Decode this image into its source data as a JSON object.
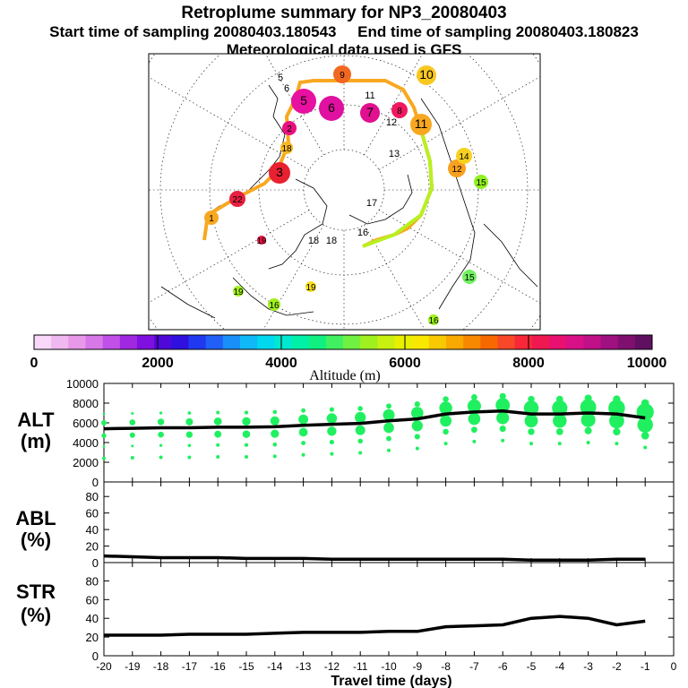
{
  "header": {
    "title": "Retroplume summary for NP3_20080403",
    "start_label": "Start time of sampling 20080403.180543",
    "end_label": "End time of sampling 20080403.180823",
    "met_label": "Meteorological data used is GFS"
  },
  "colorbar": {
    "title": "Altitude (m)",
    "ticks": [
      "0",
      "2000",
      "4000",
      "6000",
      "8000",
      "10000"
    ],
    "colors": [
      "#f8d8f8",
      "#f0b8f0",
      "#e898e8",
      "#d878e8",
      "#c050e8",
      "#a028e0",
      "#8010e0",
      "#5008d8",
      "#3010e0",
      "#2038f0",
      "#2060f8",
      "#1890f8",
      "#10b8f8",
      "#00d8f0",
      "#00e8d0",
      "#00f0a8",
      "#10f080",
      "#40f060",
      "#70f040",
      "#a0f020",
      "#c8f010",
      "#e8f000",
      "#f8e800",
      "#f8c800",
      "#f8a800",
      "#f88800",
      "#f86800",
      "#f84828",
      "#f82838",
      "#f01850",
      "#e81070",
      "#d81088",
      "#c01088",
      "#a01080",
      "#801070",
      "#601060"
    ]
  },
  "map": {
    "labels": [
      "1",
      "2",
      "3",
      "4",
      "5",
      "6",
      "7",
      "8",
      "9",
      "10",
      "11",
      "12",
      "13",
      "14",
      "15",
      "16",
      "17",
      "18",
      "19",
      "20",
      "22"
    ]
  },
  "panels": {
    "alt": {
      "label_top": "ALT",
      "label_bottom": "(m)"
    },
    "abl": {
      "label_top": "ABL",
      "label_bottom": "(%)"
    },
    "str": {
      "label_top": "STR",
      "label_bottom": "(%)"
    }
  },
  "chart_data": [
    {
      "type": "line",
      "title": "ALT (m)",
      "xlabel": "Travel time (days)",
      "ylabel": "ALT (m)",
      "x": [
        -20,
        -19,
        -18,
        -17,
        -16,
        -15,
        -14,
        -13,
        -12,
        -11,
        -10,
        -9,
        -8,
        -7,
        -6,
        -5,
        -4,
        -3,
        -2,
        -1
      ],
      "y": [
        5400,
        5450,
        5500,
        5500,
        5550,
        5550,
        5600,
        5750,
        5850,
        5950,
        6200,
        6400,
        6900,
        7100,
        7200,
        6900,
        6900,
        7000,
        6900,
        6500
      ],
      "xlim": [
        -20,
        0
      ],
      "ylim": [
        0,
        10000
      ],
      "xticks": [
        "-20",
        "-19",
        "-18",
        "-17",
        "-16",
        "-15",
        "-14",
        "-13",
        "-12",
        "-11",
        "-10",
        "-9",
        "-8",
        "-7",
        "-6",
        "-5",
        "-4",
        "-3",
        "-2",
        "-1",
        "0"
      ],
      "yticks": [
        "0",
        "2000",
        "4000",
        "6000",
        "8000",
        "10000"
      ],
      "scatter_color": "#20f060"
    },
    {
      "type": "line",
      "title": "ABL (%)",
      "x": [
        -20,
        -19,
        -18,
        -17,
        -16,
        -15,
        -14,
        -13,
        -12,
        -11,
        -10,
        -9,
        -8,
        -7,
        -6,
        -5,
        -4,
        -3,
        -2,
        -1
      ],
      "y": [
        8,
        7,
        6,
        6,
        6,
        5,
        5,
        5,
        4,
        4,
        4,
        4,
        4,
        4,
        4,
        3,
        3,
        3,
        4,
        4
      ],
      "xlim": [
        -20,
        0
      ],
      "ylim": [
        0,
        90
      ],
      "yticks": [
        "0",
        "20",
        "40",
        "60",
        "80"
      ]
    },
    {
      "type": "line",
      "title": "STR (%)",
      "x": [
        -20,
        -19,
        -18,
        -17,
        -16,
        -15,
        -14,
        -13,
        -12,
        -11,
        -10,
        -9,
        -8,
        -7,
        -6,
        -5,
        -4,
        -3,
        -2,
        -1
      ],
      "y": [
        22,
        22,
        22,
        23,
        23,
        23,
        24,
        25,
        25,
        25,
        26,
        26,
        31,
        32,
        33,
        40,
        42,
        40,
        33,
        37
      ],
      "xlim": [
        -20,
        0
      ],
      "ylim": [
        0,
        90
      ],
      "yticks": [
        "0",
        "20",
        "40",
        "60",
        "80"
      ]
    }
  ]
}
